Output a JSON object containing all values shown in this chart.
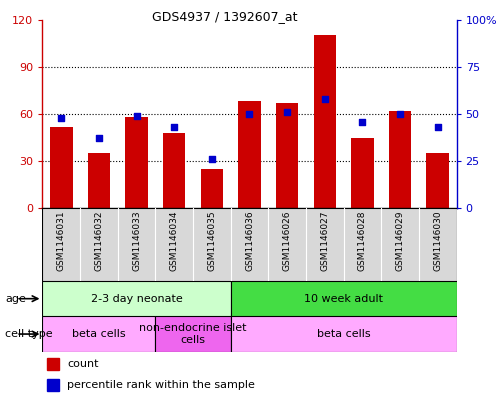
{
  "title": "GDS4937 / 1392607_at",
  "samples": [
    "GSM1146031",
    "GSM1146032",
    "GSM1146033",
    "GSM1146034",
    "GSM1146035",
    "GSM1146036",
    "GSM1146026",
    "GSM1146027",
    "GSM1146028",
    "GSM1146029",
    "GSM1146030"
  ],
  "counts": [
    52,
    35,
    58,
    48,
    25,
    68,
    67,
    110,
    45,
    62,
    35
  ],
  "percentiles": [
    48,
    37,
    49,
    43,
    26,
    50,
    51,
    58,
    46,
    50,
    43
  ],
  "bar_color": "#cc0000",
  "dot_color": "#0000cc",
  "ylim_left": [
    0,
    120
  ],
  "ylim_right": [
    0,
    100
  ],
  "yticks_left": [
    0,
    30,
    60,
    90,
    120
  ],
  "ytick_labels_left": [
    "0",
    "30",
    "60",
    "90",
    "120"
  ],
  "yticks_right": [
    0,
    25,
    50,
    75,
    100
  ],
  "ytick_labels_right": [
    "0",
    "25",
    "50",
    "75",
    "100%"
  ],
  "age_groups": [
    {
      "label": "2-3 day neonate",
      "start": 0,
      "end": 5,
      "color": "#ccffcc"
    },
    {
      "label": "10 week adult",
      "start": 5,
      "end": 11,
      "color": "#44dd44"
    }
  ],
  "cell_type_groups": [
    {
      "label": "beta cells",
      "start": 0,
      "end": 3,
      "color": "#ffaaff"
    },
    {
      "label": "non-endocrine islet\ncells",
      "start": 3,
      "end": 5,
      "color": "#ee66ee"
    },
    {
      "label": "beta cells",
      "start": 5,
      "end": 11,
      "color": "#ffaaff"
    }
  ],
  "sample_bg_color": "#d8d8d8",
  "legend_count_color": "#cc0000",
  "legend_dot_color": "#0000cc",
  "grid_color": "#000000",
  "axis_color_left": "#cc0000",
  "axis_color_right": "#0000cc",
  "border_color": "#000000"
}
